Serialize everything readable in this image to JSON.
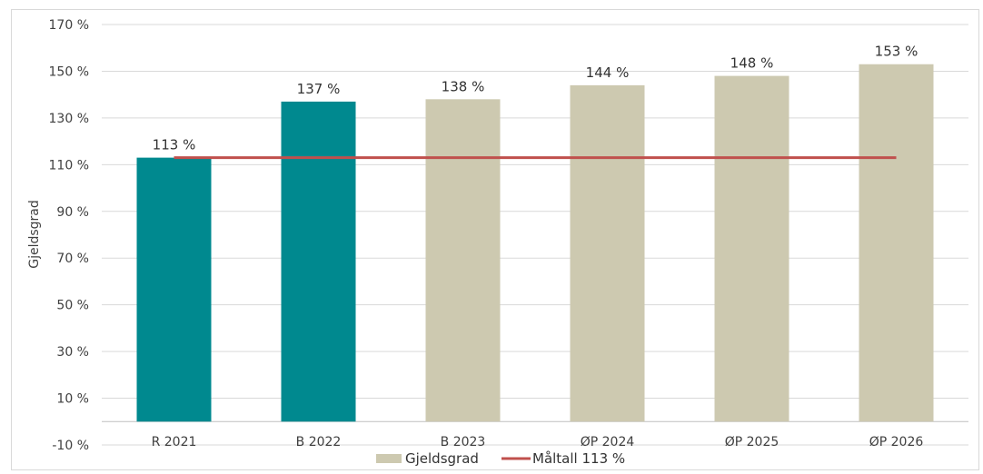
{
  "chart_data": {
    "type": "bar",
    "title": "",
    "xlabel": "",
    "ylabel": "Gjeldsgrad",
    "ylim": [
      -10,
      170
    ],
    "yticks": [
      -10,
      10,
      30,
      50,
      70,
      90,
      110,
      130,
      150,
      170
    ],
    "ytick_labels": [
      "-10 %",
      "10 %",
      "30 %",
      "50 %",
      "70 %",
      "90 %",
      "110 %",
      "130 %",
      "150 %",
      "170 %"
    ],
    "categories": [
      "R 2021",
      "B 2022",
      "B 2023",
      "ØP 2024",
      "ØP 2025",
      "ØP 2026"
    ],
    "series": [
      {
        "name": "Gjeldsgrad",
        "kind": "bar",
        "values": [
          113,
          137,
          138,
          144,
          148,
          153
        ],
        "data_labels": [
          "113 %",
          "137 %",
          "138 %",
          "144 %",
          "148 %",
          "153 %"
        ],
        "colors": [
          "#00898f",
          "#00898f",
          "#cdc9b0",
          "#cdc9b0",
          "#cdc9b0",
          "#cdc9b0"
        ]
      },
      {
        "name": "Måltall 113 %",
        "kind": "line",
        "values": [
          113,
          113,
          113,
          113,
          113,
          113
        ],
        "color": "#c0504d"
      }
    ],
    "grid": true,
    "legend_position": "bottom"
  }
}
